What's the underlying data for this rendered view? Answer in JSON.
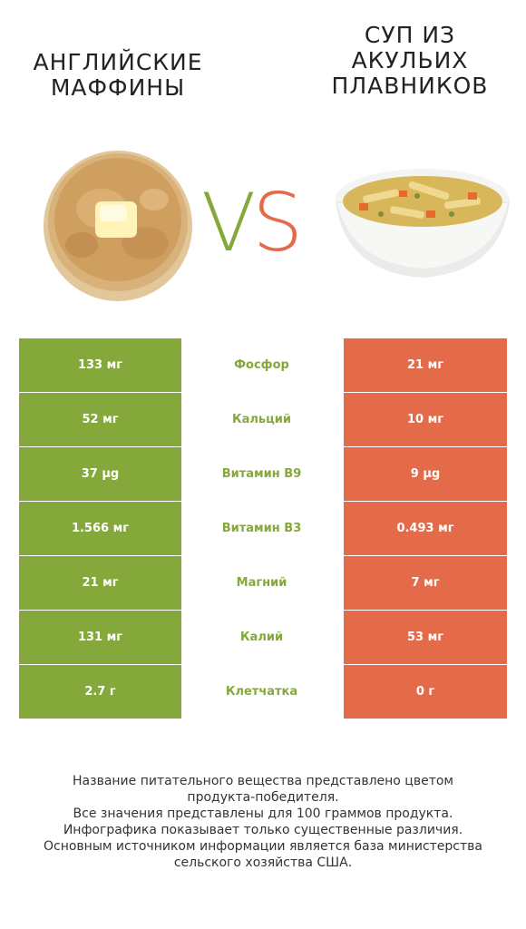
{
  "left_product": {
    "title_line1": "АНГЛИЙСКИЕ",
    "title_line2": "МАФФИНЫ"
  },
  "right_product": {
    "title_line1": "СУП ИЗ",
    "title_line2": "АКУЛЬИХ",
    "title_line3": "ПЛАВНИКОВ"
  },
  "vs": {
    "v": "V",
    "s": "S"
  },
  "colors": {
    "winner_left": "#85a83a",
    "winner_right": "#e36b4a"
  },
  "rows": [
    {
      "left": "133 мг",
      "nutrient": "Фосфор",
      "right": "21 мг"
    },
    {
      "left": "52 мг",
      "nutrient": "Кальций",
      "right": "10 мг"
    },
    {
      "left": "37 µg",
      "nutrient": "Витамин B9",
      "right": "9 µg"
    },
    {
      "left": "1.566 мг",
      "nutrient": "Витамин B3",
      "right": "0.493 мг"
    },
    {
      "left": "21 мг",
      "nutrient": "Магний",
      "right": "7 мг"
    },
    {
      "left": "131 мг",
      "nutrient": "Калий",
      "right": "53 мг"
    },
    {
      "left": "2.7 г",
      "nutrient": "Клетчатка",
      "right": "0 г"
    }
  ],
  "footer": {
    "line1": "Название питательного вещества представлено цветом",
    "line2": "продукта-победителя.",
    "line3": "Все значения представлены для 100 граммов продукта.",
    "line4": "Инфографика показывает только существенные различия.",
    "line5": "Основным источником информации является база министерства",
    "line6": "сельского хозяйства США."
  }
}
